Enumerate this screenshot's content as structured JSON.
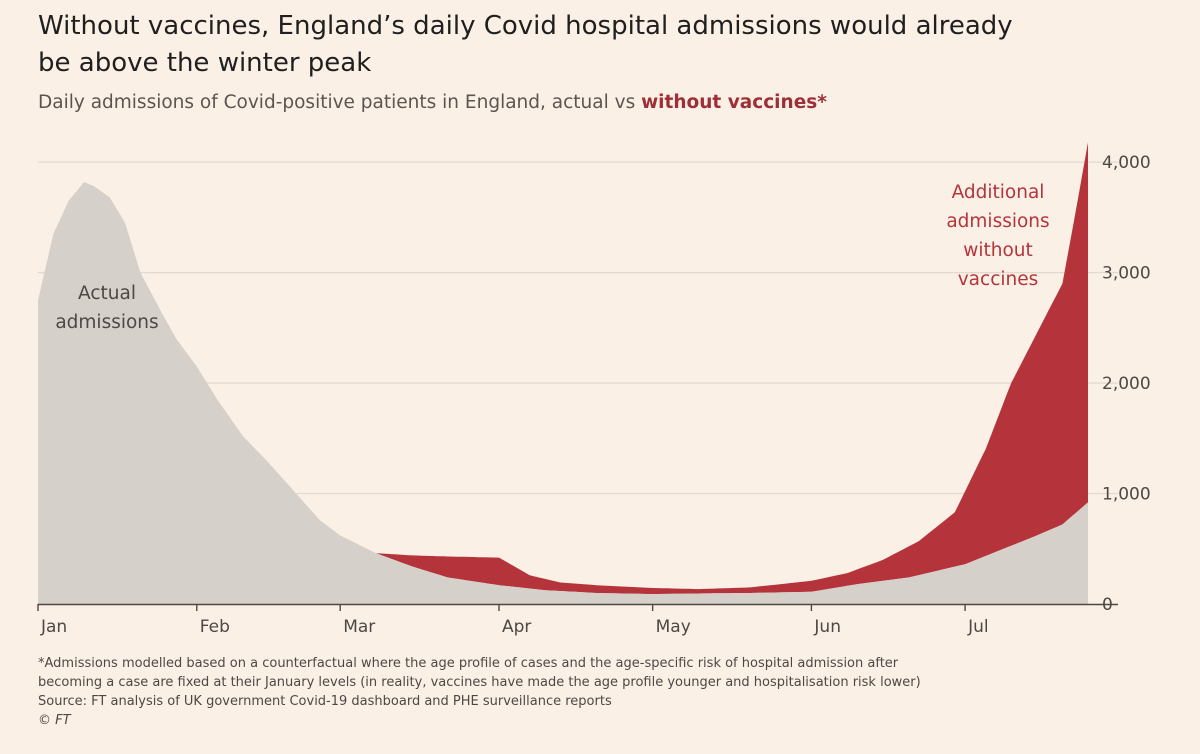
{
  "title": "Without vaccines, England’s daily Covid hospital admissions would already be above the winter peak",
  "subtitle": {
    "prefix": "Daily admissions of Covid-positive patients in England, actual vs ",
    "highlight": "without vaccines*"
  },
  "colors": {
    "actual": "#d5d0ca",
    "without_vaccines": "#b5343c",
    "background": "#fbf0e6",
    "highlight_text": "#9e2f37",
    "grid": "#e3d9cf"
  },
  "chart_data": {
    "type": "area",
    "x_axis": {
      "type": "date",
      "range": [
        "2021-01-01",
        "2021-07-25"
      ],
      "tick_labels": [
        "Jan",
        "Feb",
        "Mar",
        "Apr",
        "May",
        "Jun",
        "Jul"
      ],
      "tick_dates": [
        "2021-01-01",
        "2021-02-01",
        "2021-03-01",
        "2021-04-01",
        "2021-05-01",
        "2021-06-01",
        "2021-07-01"
      ]
    },
    "y_axis": {
      "range": [
        0,
        4200
      ],
      "ticks": [
        0,
        1000,
        2000,
        3000,
        4000
      ],
      "tick_labels": [
        "0",
        "1,000",
        "2,000",
        "3,000",
        "4,000"
      ],
      "position": "right"
    },
    "grid": true,
    "series": [
      {
        "name": "Actual admissions",
        "x": [
          "2021-01-01",
          "2021-01-04",
          "2021-01-07",
          "2021-01-10",
          "2021-01-12",
          "2021-01-15",
          "2021-01-18",
          "2021-01-21",
          "2021-01-25",
          "2021-01-28",
          "2021-02-01",
          "2021-02-05",
          "2021-02-10",
          "2021-02-15",
          "2021-02-20",
          "2021-02-25",
          "2021-03-01",
          "2021-03-08",
          "2021-03-15",
          "2021-03-22",
          "2021-04-01",
          "2021-04-10",
          "2021-04-20",
          "2021-05-01",
          "2021-05-10",
          "2021-05-20",
          "2021-06-01",
          "2021-06-10",
          "2021-06-20",
          "2021-07-01",
          "2021-07-08",
          "2021-07-15",
          "2021-07-20",
          "2021-07-25"
        ],
        "y": [
          2750,
          3350,
          3650,
          3820,
          3780,
          3680,
          3450,
          3000,
          2650,
          2400,
          2150,
          1850,
          1520,
          1280,
          1020,
          760,
          620,
          460,
          340,
          240,
          170,
          125,
          100,
          90,
          95,
          100,
          110,
          180,
          240,
          360,
          490,
          620,
          720,
          920
        ]
      },
      {
        "name": "Additional admissions without vaccines",
        "x": [
          "2021-03-01",
          "2021-03-08",
          "2021-03-15",
          "2021-03-22",
          "2021-04-01",
          "2021-04-07",
          "2021-04-13",
          "2021-04-20",
          "2021-05-01",
          "2021-05-10",
          "2021-05-20",
          "2021-06-01",
          "2021-06-08",
          "2021-06-15",
          "2021-06-22",
          "2021-06-29",
          "2021-07-05",
          "2021-07-10",
          "2021-07-15",
          "2021-07-20",
          "2021-07-22",
          "2021-07-25"
        ],
        "y": [
          620,
          460,
          440,
          430,
          420,
          260,
          195,
          170,
          145,
          135,
          150,
          210,
          280,
          400,
          570,
          830,
          1400,
          2000,
          2450,
          2900,
          3400,
          4180
        ]
      }
    ],
    "annotations": [
      {
        "text": [
          "Actual",
          "admissions"
        ],
        "color": "#4d4845"
      },
      {
        "text": [
          "Additional",
          "admissions",
          "without",
          "vaccines"
        ],
        "color": "#b5343c"
      }
    ]
  },
  "footnote": {
    "lines": [
      "*Admissions modelled based on a counterfactual where the age profile of cases and the age-specific risk of hospital admission after",
      "becoming a case are fixed at their January levels (in reality, vaccines have made the age profile younger and hospitalisation risk lower)"
    ],
    "source": "Source: FT analysis of UK government Covid-19 dashboard and PHE surveillance reports",
    "credit": "© FT"
  }
}
